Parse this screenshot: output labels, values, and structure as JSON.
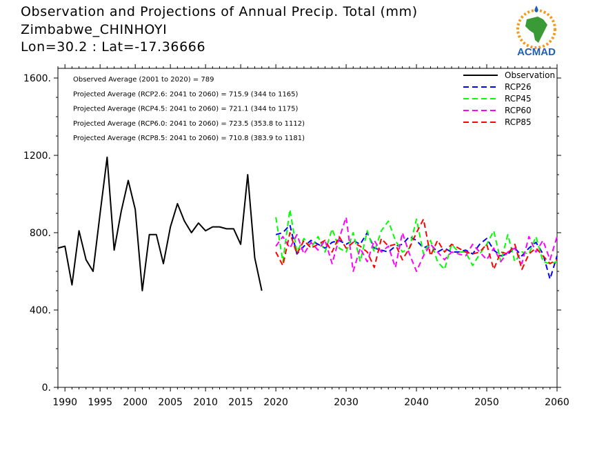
{
  "title": {
    "line1": "Observation and Projections of Annual Precip. Total (mm)",
    "line2": "Zimbabwe_CHINHOYI",
    "line3": "Lon=30.2 : Lat=-17.36666"
  },
  "logo": {
    "text": "ACMAD",
    "icon": "africa-map-icon",
    "colors": {
      "green": "#3a9a35",
      "orange": "#f39a1d",
      "blue": "#1f5fb0"
    }
  },
  "annotations": [
    "Observed Average (2001 to 2020) = 789",
    "Projected Average (RCP2.6: 2041 to 2060) = 715.9 (344 to 1165)",
    "Projected Average (RCP4.5: 2041 to 2060) = 721.1 (344 to 1175)",
    "Projected Average (RCP6.0: 2041 to 2060) = 723.5 (353.8 to 1112)",
    "Projected Average (RCP8.5: 2041 to 2060) = 710.8 (383.9 to 1181)"
  ],
  "chart_data": {
    "type": "line",
    "xlim": [
      1989,
      2060
    ],
    "ylim": [
      0,
      1650
    ],
    "x_ticks": [
      1990,
      1995,
      2000,
      2005,
      2010,
      2015,
      2020,
      2030,
      2040,
      2050,
      2060
    ],
    "y_ticks": [
      0,
      400,
      800,
      1200,
      1600
    ],
    "y_tick_labels": [
      "0.",
      "400.",
      "800.",
      "1200.",
      "1600."
    ],
    "grid": false,
    "legend_position": "top-right",
    "series": [
      {
        "name": "Observation",
        "color": "#000000",
        "dashed": false,
        "x": [
          1989,
          1990,
          1991,
          1992,
          1993,
          1994,
          1995,
          1996,
          1997,
          1998,
          1999,
          2000,
          2001,
          2002,
          2003,
          2004,
          2005,
          2006,
          2007,
          2008,
          2009,
          2010,
          2011,
          2012,
          2013,
          2014,
          2015,
          2016,
          2017,
          2018,
          2019,
          2020
        ],
        "y": [
          720,
          730,
          530,
          810,
          660,
          600,
          900,
          1190,
          710,
          910,
          1070,
          920,
          500,
          790,
          790,
          640,
          830,
          950,
          860,
          800,
          850,
          810,
          830,
          830,
          820,
          820,
          740,
          1100,
          670,
          500,
          null,
          null
        ]
      },
      {
        "name": "RCP26",
        "color": "#0000ff",
        "dashed": true,
        "x": [
          2020,
          2021,
          2022,
          2023,
          2024,
          2025,
          2026,
          2027,
          2028,
          2029,
          2030,
          2031,
          2032,
          2033,
          2034,
          2035,
          2036,
          2037,
          2038,
          2039,
          2040,
          2041,
          2042,
          2043,
          2044,
          2045,
          2046,
          2047,
          2048,
          2049,
          2050,
          2051,
          2052,
          2053,
          2054,
          2055,
          2056,
          2057,
          2058,
          2059,
          2060
        ],
        "y": [
          790,
          800,
          840,
          690,
          730,
          760,
          740,
          720,
          750,
          760,
          740,
          760,
          740,
          800,
          720,
          710,
          700,
          730,
          740,
          780,
          760,
          720,
          740,
          700,
          720,
          700,
          700,
          710,
          690,
          740,
          770,
          710,
          680,
          690,
          720,
          680,
          720,
          750,
          690,
          560,
          680
        ]
      },
      {
        "name": "RCP45",
        "color": "#00ff00",
        "dashed": true,
        "x": [
          2020,
          2021,
          2022,
          2023,
          2024,
          2025,
          2026,
          2027,
          2028,
          2029,
          2030,
          2031,
          2032,
          2033,
          2034,
          2035,
          2036,
          2037,
          2038,
          2039,
          2040,
          2041,
          2042,
          2043,
          2044,
          2045,
          2046,
          2047,
          2048,
          2049,
          2050,
          2051,
          2052,
          2053,
          2054,
          2055,
          2056,
          2057,
          2058,
          2059,
          2060
        ],
        "y": [
          880,
          650,
          920,
          700,
          770,
          720,
          780,
          700,
          820,
          720,
          700,
          800,
          650,
          810,
          700,
          810,
          860,
          760,
          700,
          720,
          870,
          690,
          760,
          650,
          610,
          740,
          700,
          700,
          630,
          690,
          740,
          810,
          650,
          790,
          650,
          700,
          690,
          780,
          650,
          640,
          650
        ]
      },
      {
        "name": "RCP60",
        "color": "#ff00ff",
        "dashed": true,
        "x": [
          2020,
          2021,
          2022,
          2023,
          2024,
          2025,
          2026,
          2027,
          2028,
          2029,
          2030,
          2031,
          2032,
          2033,
          2034,
          2035,
          2036,
          2037,
          2038,
          2039,
          2040,
          2041,
          2042,
          2043,
          2044,
          2045,
          2046,
          2047,
          2048,
          2049,
          2050,
          2051,
          2052,
          2053,
          2054,
          2055,
          2056,
          2057,
          2058,
          2059,
          2060
        ],
        "y": [
          730,
          780,
          720,
          790,
          690,
          750,
          710,
          760,
          640,
          770,
          880,
          600,
          720,
          650,
          760,
          700,
          730,
          620,
          800,
          690,
          600,
          680,
          740,
          700,
          660,
          700,
          690,
          680,
          740,
          700,
          660,
          720,
          650,
          700,
          720,
          640,
          780,
          700,
          760,
          660,
          780
        ]
      },
      {
        "name": "RCP85",
        "color": "#ff0000",
        "dashed": true,
        "x": [
          2020,
          2021,
          2022,
          2023,
          2024,
          2025,
          2026,
          2027,
          2028,
          2029,
          2030,
          2031,
          2032,
          2033,
          2034,
          2035,
          2036,
          2037,
          2038,
          2039,
          2040,
          2041,
          2042,
          2043,
          2044,
          2045,
          2046,
          2047,
          2048,
          2049,
          2050,
          2051,
          2052,
          2053,
          2054,
          2055,
          2056,
          2057,
          2058,
          2059,
          2060
        ],
        "y": [
          700,
          630,
          800,
          690,
          760,
          720,
          740,
          760,
          700,
          780,
          720,
          750,
          730,
          700,
          620,
          770,
          730,
          740,
          660,
          720,
          800,
          870,
          680,
          760,
          700,
          740,
          720,
          700,
          690,
          700,
          740,
          610,
          700,
          690,
          740,
          610,
          690,
          720,
          680,
          640,
          660
        ]
      }
    ]
  }
}
